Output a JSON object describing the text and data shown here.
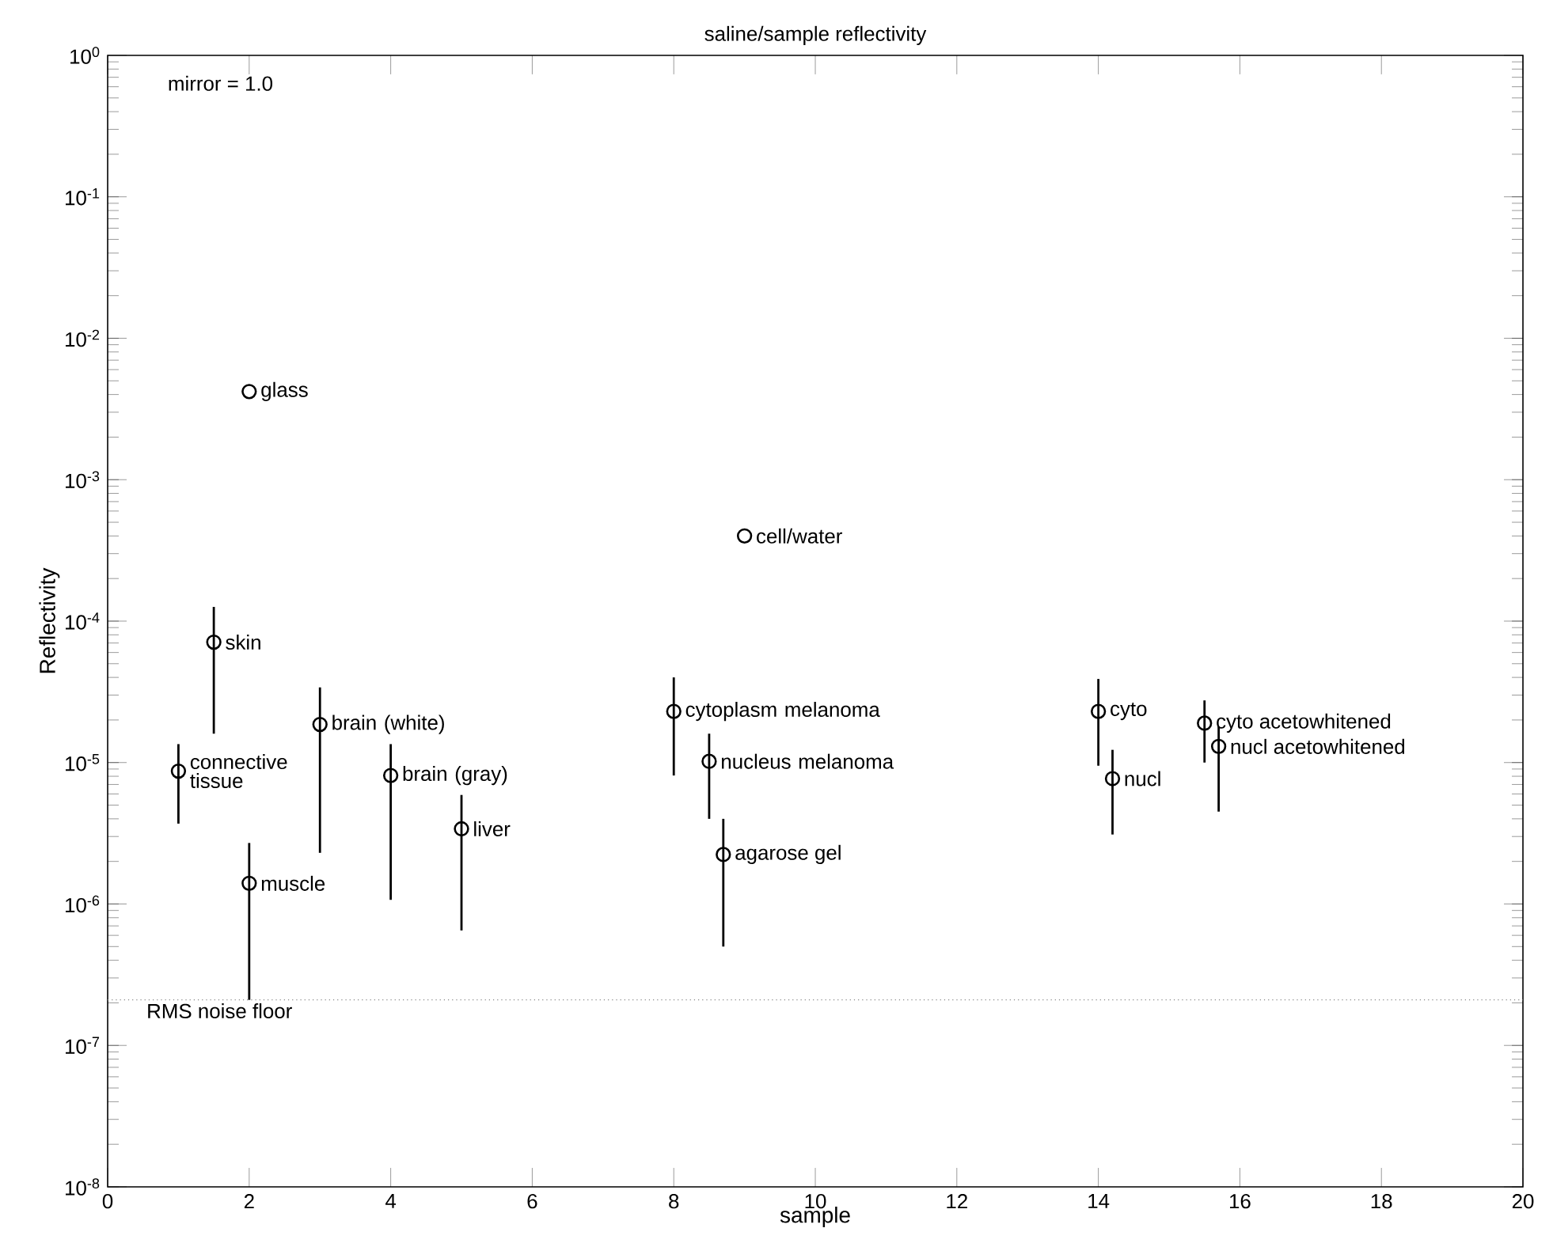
{
  "chart_data": {
    "type": "scatter",
    "title": "saline/sample reflectivity",
    "xlabel": "sample",
    "ylabel": "Reflectivity",
    "series": [
      {
        "color": "#000000",
        "x": [
          2,
          1.5,
          1,
          2,
          3,
          4,
          5,
          8,
          8.5,
          8.7,
          9,
          14,
          14.2,
          15.5,
          15.7
        ],
        "values": [
          0.0042,
          7.1e-05,
          8.7e-06,
          1.4e-06,
          1.86e-05,
          8.1e-06,
          3.4e-06,
          2.3e-05,
          1.02e-05,
          2.24e-06,
          0.0004,
          2.3e-05,
          7.7e-06,
          1.9e-05,
          1.3e-05
        ],
        "errors": [
          null,
          [
            1.6e-05,
            0.000126
          ],
          [
            3.7e-06,
            1.35e-05
          ],
          [
            2.1e-07,
            2.7e-06
          ],
          [
            2.3e-06,
            3.4e-05
          ],
          [
            1.07e-06,
            1.35e-05
          ],
          [
            6.5e-07,
            5.9e-06
          ],
          [
            8.1e-06,
            4e-05
          ],
          [
            4e-06,
            1.6e-05
          ],
          [
            5e-07,
            4e-06
          ],
          null,
          [
            9.5e-06,
            3.9e-05
          ],
          [
            3.1e-06,
            1.23e-05
          ],
          [
            1e-05,
            2.75e-05
          ],
          [
            4.5e-06,
            1.8e-05
          ]
        ]
      }
    ],
    "annotations": [
      "mirror = 1.0",
      {
        "text": "glass",
        "x": 2,
        "y": 0.0042
      },
      {
        "text": "skin",
        "x": 1.5,
        "y": 7.1e-05
      },
      {
        "text": "connective tissue",
        "x": 1,
        "y": 8.7e-06
      },
      {
        "text": "muscle",
        "x": 2,
        "y": 1.4e-06
      },
      {
        "text": "brain (white)",
        "x": 3,
        "y": 1.86e-05
      },
      {
        "text": "brain (gray)",
        "x": 4,
        "y": 8.1e-06
      },
      {
        "text": "liver",
        "x": 5,
        "y": 3.4e-06
      },
      {
        "text": "cytoplasm melanoma",
        "x": 8,
        "y": 2.3e-05
      },
      {
        "text": "nucleus melanoma",
        "x": 8.5,
        "y": 1.02e-05
      },
      {
        "text": "agarose gel",
        "x": 8.7,
        "y": 2.24e-06
      },
      {
        "text": "cell/water",
        "x": 9,
        "y": 0.0004
      },
      {
        "text": "cyto",
        "x": 14,
        "y": 2.3e-05
      },
      {
        "text": "nucl",
        "x": 14.2,
        "y": 7.7e-06
      },
      {
        "text": "cyto acetowhitened",
        "x": 15.5,
        "y": 1.9e-05
      },
      {
        "text": "nucl acetowhitened",
        "x": 15.7,
        "y": 1.3e-05
      }
    ],
    "ref_lines": [
      {
        "axis": "y",
        "value": 2.1e-07,
        "label": "RMS noise floor",
        "color": "#888888",
        "line_style": "dotted"
      }
    ],
    "xlim": [
      0,
      20
    ],
    "xticks": [
      0,
      2,
      4,
      6,
      8,
      10,
      12,
      14,
      16,
      18,
      20
    ],
    "ylim": [
      1e-08,
      1
    ],
    "log": "y",
    "yticks": [
      {
        "value": 1e-08,
        "label": "10$^{-8}$"
      },
      {
        "value": 1e-07,
        "label": "10$^{-7}$"
      },
      {
        "value": 1e-06,
        "label": "10$^{-6}$"
      },
      {
        "value": 1e-05,
        "label": "10$^{-5}$"
      },
      {
        "value": 0.0001,
        "label": "10$^{-4}$"
      },
      {
        "value": 0.001,
        "label": "10$^{-3}$"
      },
      {
        "value": 0.01,
        "label": "10$^{-2}$"
      },
      {
        "value": 0.1,
        "label": "10$^{-1}$"
      },
      {
        "value": 1,
        "label": "10$^{0}$"
      }
    ],
    "grid": false,
    "marker": "circle"
  }
}
